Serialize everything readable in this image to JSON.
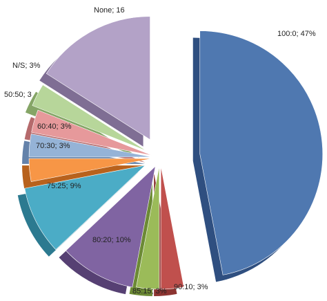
{
  "chart_data": {
    "type": "pie",
    "style": "3d-exploded",
    "slices": [
      {
        "label": "100:0; 47%",
        "category": "100:0",
        "value": 47,
        "color": "#4f78b0",
        "side_color": "#2f4f80"
      },
      {
        "label": "90:10; 3%",
        "category": "90:10",
        "value": 3,
        "color": "#c0504d",
        "side_color": "#8c3431"
      },
      {
        "label": "85:15; 3%",
        "category": "85:15",
        "value": 3,
        "color": "#9bbb59",
        "side_color": "#6c8a35"
      },
      {
        "label": "80:20; 10%",
        "category": "80:20",
        "value": 10,
        "color": "#8064a2",
        "side_color": "#564073"
      },
      {
        "label": "75:25; 9%",
        "category": "75:25",
        "value": 9,
        "color": "#4bacc6",
        "side_color": "#2c7a90"
      },
      {
        "label": "70:30; 3%",
        "category": "70:30",
        "value": 3,
        "color": "#f79646",
        "side_color": "#b8621d"
      },
      {
        "label": "60:40; 3%",
        "category": "60:40",
        "value": 3,
        "color": "#95b3d7",
        "side_color": "#6482aa"
      },
      {
        "label": "50:50; 3",
        "category": "50:50",
        "value": 3,
        "color": "#e6999b",
        "side_color": "#b56a6c"
      },
      {
        "label": "N/S; 3%",
        "category": "N/S",
        "value": 3,
        "color": "#b7d69a",
        "side_color": "#85a566"
      },
      {
        "label": "None; 16",
        "category": "None",
        "value": 16,
        "color": "#b3a2c7",
        "side_color": "#7f6e94"
      }
    ]
  }
}
